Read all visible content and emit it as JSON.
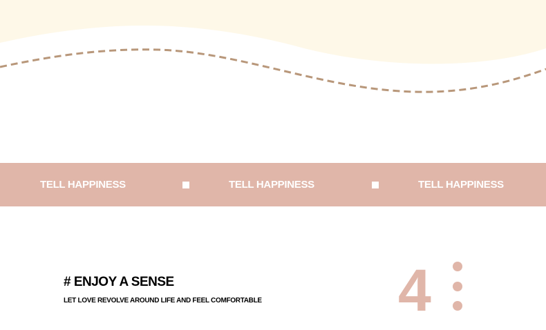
{
  "colors": {
    "cream": "#fef8e8",
    "accent": "#e0b6a9",
    "dash": "#b8977a"
  },
  "band": {
    "items": [
      "TELL HAPPINESS",
      "TELL HAPPINESS",
      "TELL HAPPINESS"
    ]
  },
  "section": {
    "title": "# ENJOY A SENSE",
    "subtitle": "LET LOVE REVOLVE AROUND LIFE AND FEEL COMFORTABLE",
    "number": "4"
  }
}
